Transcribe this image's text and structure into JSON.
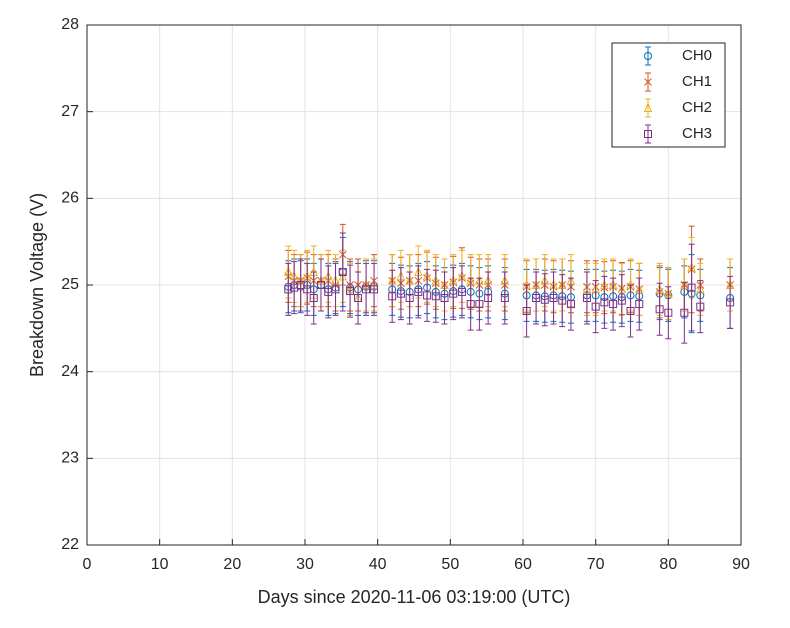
{
  "chart_data": {
    "type": "errorbar",
    "xlabel": "Days since 2020-11-06 03:19:00 (UTC)",
    "ylabel": "Breakdown Voltage (V)",
    "xlim": [
      0,
      90
    ],
    "xticks": [
      0,
      10,
      20,
      30,
      40,
      50,
      60,
      70,
      80,
      90
    ],
    "ylim": [
      22,
      28
    ],
    "yticks": [
      22,
      23,
      24,
      25,
      26,
      27,
      28
    ],
    "grid": true,
    "legend": "upper right",
    "x": [
      27.7,
      28.5,
      29.4,
      30.3,
      31.2,
      32.2,
      33.2,
      34.2,
      35.2,
      36.2,
      37.3,
      38.4,
      39.5,
      42.0,
      43.2,
      44.4,
      45.6,
      46.8,
      48.0,
      49.2,
      50.4,
      51.6,
      52.8,
      54.0,
      55.2,
      57.5,
      60.5,
      61.8,
      63.0,
      64.2,
      65.4,
      66.6,
      68.8,
      70.0,
      71.2,
      72.4,
      73.6,
      74.8,
      76.0,
      78.8,
      80.0,
      82.2,
      83.2,
      84.4,
      88.5
    ],
    "series": [
      {
        "name": "CH0",
        "color": "#0072BD",
        "marker": "o",
        "values": [
          24.98,
          25.0,
          24.98,
          25.0,
          24.95,
          25.0,
          24.95,
          24.97,
          25.15,
          24.97,
          24.95,
          24.98,
          24.98,
          24.95,
          24.93,
          24.92,
          24.95,
          24.97,
          24.92,
          24.9,
          24.93,
          24.95,
          24.92,
          24.9,
          24.92,
          24.9,
          24.88,
          24.88,
          24.87,
          24.88,
          24.87,
          24.86,
          24.88,
          24.88,
          24.86,
          24.87,
          24.86,
          24.88,
          24.87,
          24.9,
          24.88,
          24.92,
          24.9,
          24.88,
          24.85
        ],
        "errors": [
          0.3,
          0.3,
          0.3,
          0.3,
          0.3,
          0.3,
          0.3,
          0.3,
          0.4,
          0.3,
          0.3,
          0.3,
          0.3,
          0.3,
          0.3,
          0.3,
          0.3,
          0.3,
          0.3,
          0.3,
          0.3,
          0.3,
          0.3,
          0.3,
          0.3,
          0.3,
          0.3,
          0.3,
          0.3,
          0.3,
          0.3,
          0.3,
          0.3,
          0.3,
          0.3,
          0.3,
          0.3,
          0.3,
          0.3,
          0.3,
          0.3,
          0.3,
          0.45,
          0.3,
          0.35
        ]
      },
      {
        "name": "CH1",
        "color": "#D95319",
        "marker": "x",
        "values": [
          25.1,
          25.05,
          25.05,
          25.08,
          25.05,
          25.05,
          25.05,
          25.0,
          25.35,
          25.0,
          25.0,
          25.0,
          25.05,
          25.05,
          25.02,
          25.05,
          25.05,
          25.08,
          25.02,
          25.0,
          25.03,
          25.08,
          25.02,
          25.0,
          25.0,
          25.0,
          24.98,
          25.0,
          25.0,
          24.98,
          25.0,
          24.98,
          24.98,
          24.98,
          24.97,
          24.98,
          24.96,
          24.98,
          24.95,
          24.92,
          24.9,
          25.0,
          25.18,
          25.0,
          25.0
        ],
        "errors": [
          0.3,
          0.3,
          0.3,
          0.3,
          0.3,
          0.3,
          0.3,
          0.3,
          0.35,
          0.3,
          0.3,
          0.3,
          0.3,
          0.3,
          0.3,
          0.3,
          0.3,
          0.3,
          0.3,
          0.3,
          0.3,
          0.35,
          0.3,
          0.3,
          0.3,
          0.3,
          0.3,
          0.3,
          0.3,
          0.3,
          0.3,
          0.3,
          0.3,
          0.3,
          0.3,
          0.3,
          0.3,
          0.3,
          0.3,
          0.3,
          0.3,
          0.3,
          0.5,
          0.3,
          0.3
        ]
      },
      {
        "name": "CH2",
        "color": "#EDB120",
        "marker": "^",
        "values": [
          25.15,
          25.1,
          25.05,
          25.1,
          25.15,
          25.05,
          25.1,
          25.05,
          25.1,
          24.95,
          24.85,
          25.0,
          25.0,
          25.05,
          25.1,
          25.05,
          25.15,
          25.1,
          25.05,
          25.0,
          25.05,
          25.1,
          25.05,
          25.05,
          25.05,
          25.05,
          25.0,
          25.0,
          25.05,
          25.0,
          25.0,
          25.05,
          24.95,
          24.95,
          25.0,
          25.0,
          24.95,
          25.0,
          24.95,
          24.95,
          24.9,
          25.0,
          25.2,
          24.95,
          25.0
        ],
        "errors": [
          0.3,
          0.3,
          0.3,
          0.3,
          0.3,
          0.3,
          0.3,
          0.3,
          0.3,
          0.3,
          0.3,
          0.3,
          0.3,
          0.3,
          0.3,
          0.3,
          0.3,
          0.3,
          0.3,
          0.3,
          0.3,
          0.3,
          0.3,
          0.3,
          0.3,
          0.3,
          0.3,
          0.3,
          0.3,
          0.3,
          0.3,
          0.3,
          0.3,
          0.3,
          0.3,
          0.3,
          0.3,
          0.3,
          0.3,
          0.3,
          0.3,
          0.3,
          0.35,
          0.3,
          0.3
        ]
      },
      {
        "name": "CH3",
        "color": "#7E2F8E",
        "marker": "s",
        "values": [
          24.95,
          24.97,
          25.0,
          24.95,
          24.85,
          25.0,
          24.92,
          24.95,
          25.15,
          24.93,
          24.85,
          24.95,
          24.95,
          24.87,
          24.9,
          24.85,
          24.92,
          24.88,
          24.87,
          24.85,
          24.9,
          24.92,
          24.78,
          24.78,
          24.85,
          24.85,
          24.7,
          24.85,
          24.83,
          24.85,
          24.82,
          24.78,
          24.85,
          24.75,
          24.8,
          24.78,
          24.82,
          24.7,
          24.78,
          24.72,
          24.68,
          24.68,
          24.97,
          24.75,
          24.8
        ],
        "errors": [
          0.3,
          0.3,
          0.3,
          0.3,
          0.3,
          0.3,
          0.3,
          0.3,
          0.45,
          0.3,
          0.3,
          0.3,
          0.3,
          0.3,
          0.3,
          0.3,
          0.3,
          0.3,
          0.3,
          0.3,
          0.3,
          0.3,
          0.3,
          0.3,
          0.3,
          0.3,
          0.3,
          0.3,
          0.3,
          0.3,
          0.3,
          0.3,
          0.3,
          0.3,
          0.3,
          0.3,
          0.3,
          0.3,
          0.3,
          0.3,
          0.3,
          0.35,
          0.5,
          0.3,
          0.3
        ]
      }
    ]
  }
}
